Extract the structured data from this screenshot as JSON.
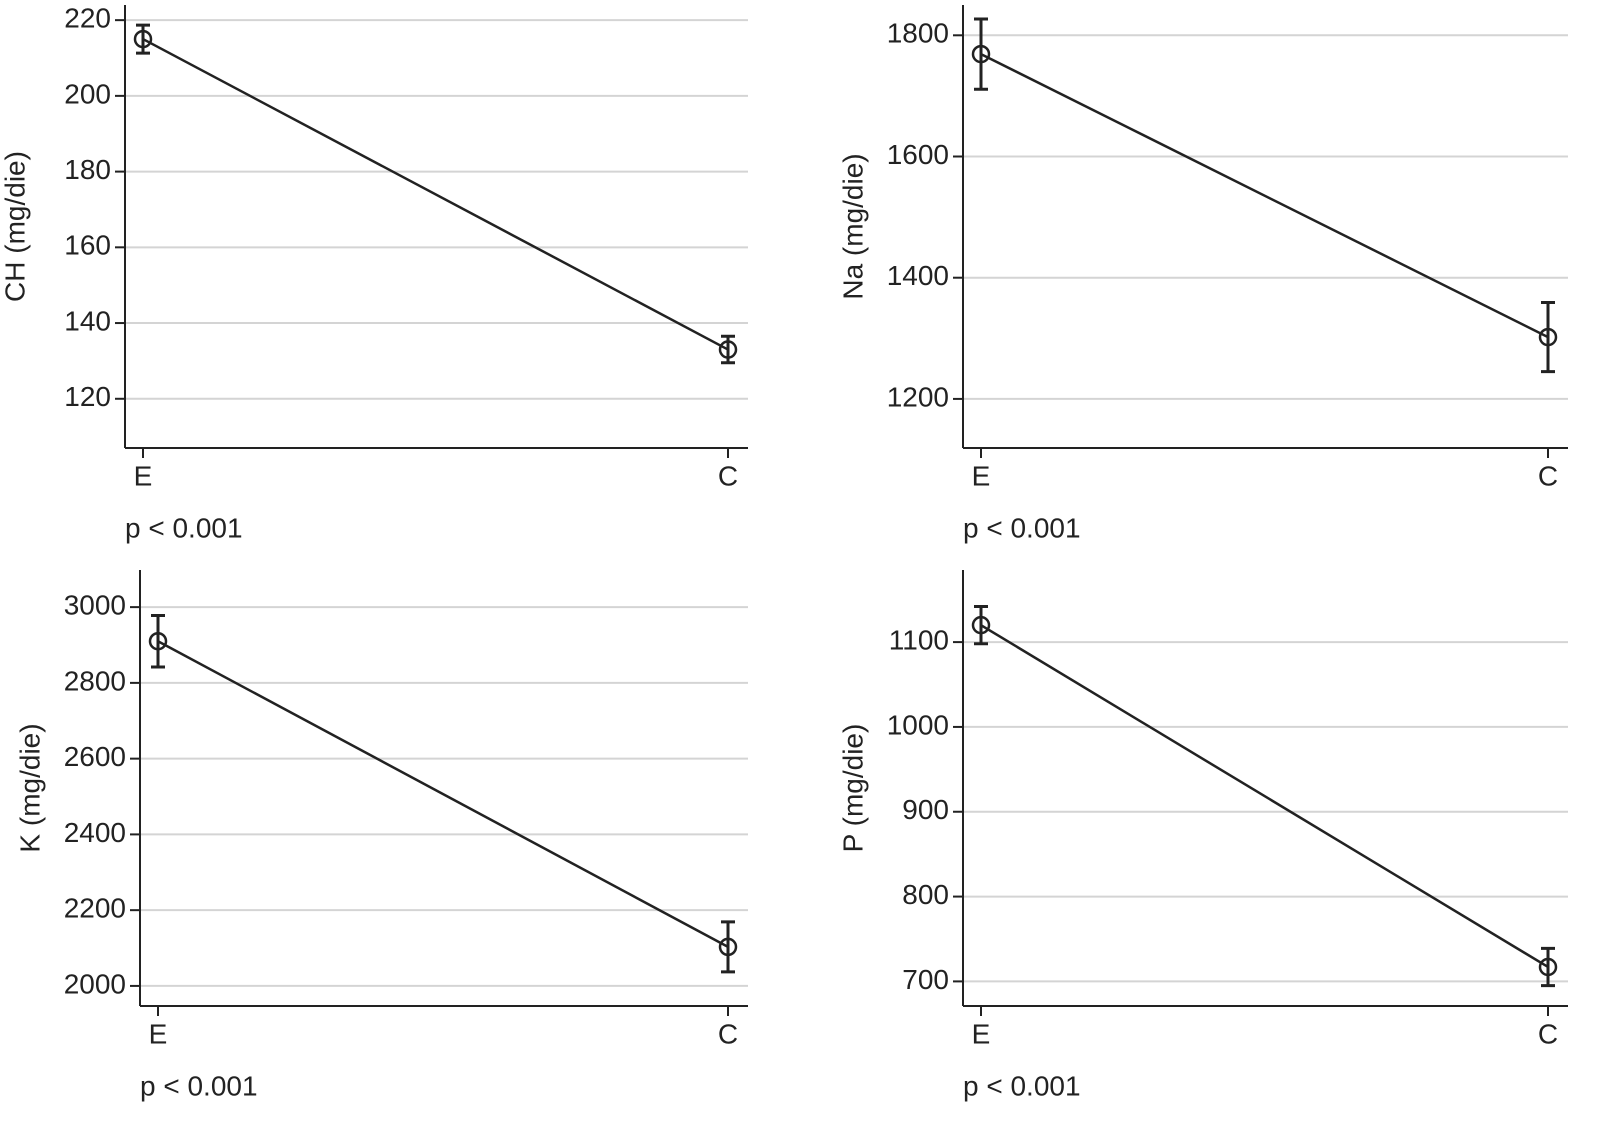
{
  "chart_data": [
    {
      "type": "line",
      "ylabel": "CH (mg/die)",
      "annotation": "p < 0.001",
      "categories": [
        "E",
        "C"
      ],
      "values": [
        215,
        133
      ],
      "errors": [
        3.7,
        3.5
      ],
      "color": "#222222",
      "ylim": [
        107,
        224
      ],
      "yticks": [
        120,
        140,
        160,
        180,
        200,
        220
      ],
      "grid": true
    },
    {
      "type": "line",
      "ylabel": "Na (mg/die)",
      "annotation": "p < 0.001",
      "categories": [
        "E",
        "C"
      ],
      "values": [
        1769,
        1302
      ],
      "errors": [
        58,
        57
      ],
      "color": "#222222",
      "ylim": [
        1119,
        1850
      ],
      "yticks": [
        1200,
        1400,
        1600,
        1800
      ],
      "grid": true
    },
    {
      "type": "line",
      "ylabel": "K (mg/die)",
      "annotation": "p < 0.001",
      "categories": [
        "E",
        "C"
      ],
      "values": [
        2910,
        2103
      ],
      "errors": [
        68,
        66
      ],
      "color": "#222222",
      "ylim": [
        1947,
        3098
      ],
      "yticks": [
        2000,
        2200,
        2400,
        2600,
        2800,
        3000
      ],
      "grid": true
    },
    {
      "type": "line",
      "ylabel": "P (mg/die)",
      "annotation": "p < 0.001",
      "categories": [
        "E",
        "C"
      ],
      "values": [
        1120,
        717
      ],
      "errors": [
        22,
        22
      ],
      "color": "#222222",
      "ylim": [
        671,
        1185
      ],
      "yticks": [
        700,
        800,
        900,
        1000,
        1100
      ],
      "grid": true
    }
  ]
}
